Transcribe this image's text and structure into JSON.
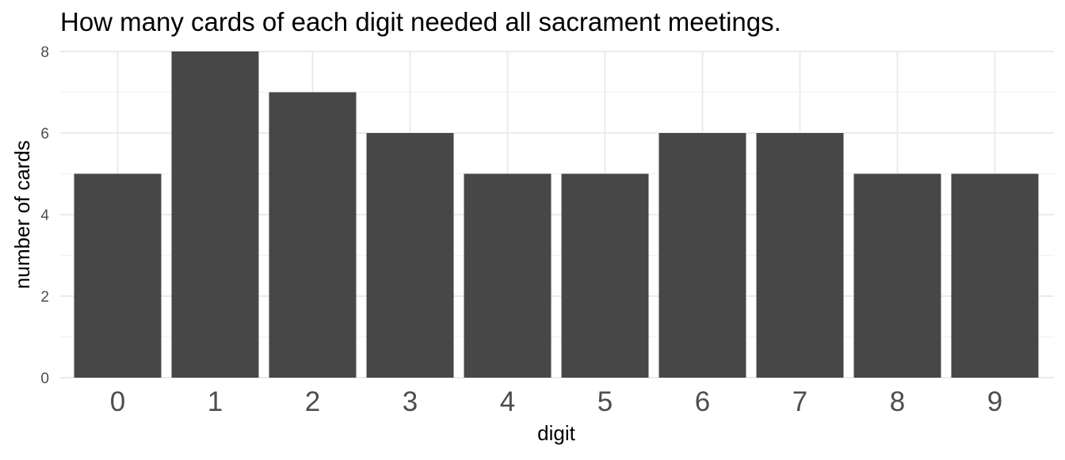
{
  "chart_data": {
    "type": "bar",
    "title": "How many cards of each digit needed all sacrament meetings.",
    "xlabel": "digit",
    "ylabel": "number of cards",
    "categories": [
      "0",
      "1",
      "2",
      "3",
      "4",
      "5",
      "6",
      "7",
      "8",
      "9"
    ],
    "values": [
      5,
      8,
      7,
      6,
      5,
      5,
      6,
      6,
      5,
      5
    ],
    "yticks": [
      "0",
      "2",
      "4",
      "6",
      "8"
    ],
    "ylim": [
      0,
      8
    ],
    "grid": true,
    "legend": "none",
    "bar_color": "#474747",
    "grid_color": "#ebebeb"
  }
}
